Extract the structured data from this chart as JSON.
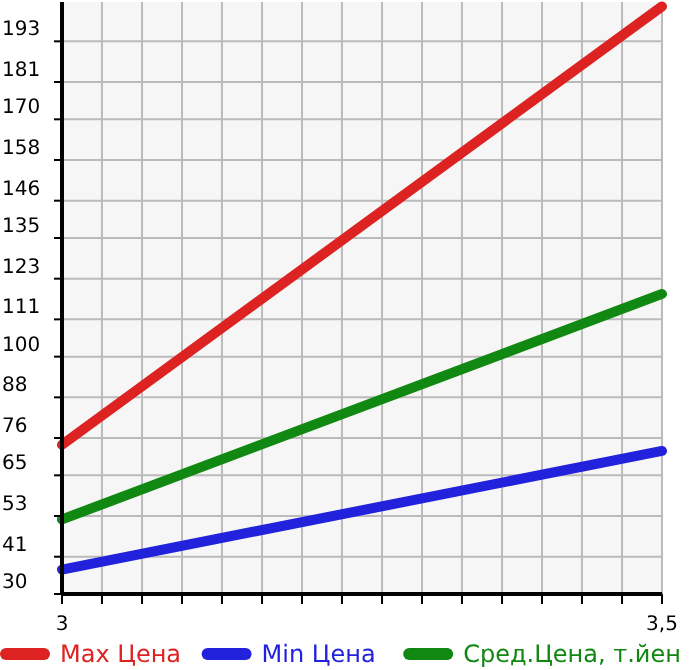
{
  "chart_data": {
    "type": "line",
    "x": [
      3,
      3.5
    ],
    "series": [
      {
        "name": "Max Цена",
        "color": "#dd2222",
        "values": [
          74,
          203.3
        ]
      },
      {
        "name": "Min Цена",
        "color": "#2222dd",
        "values": [
          37.2,
          72.2
        ]
      },
      {
        "name": "Сред.Цена, т.йен",
        "color": "#118811",
        "values": [
          52,
          118.5
        ]
      }
    ],
    "xlim": [
      3,
      3.5
    ],
    "xticks": [
      3,
      {
        "value": 3.0333,
        "label": null
      },
      {
        "value": 3.0667,
        "label": null
      },
      {
        "value": 3.1,
        "label": null
      },
      {
        "value": 3.1333,
        "label": null
      },
      {
        "value": 3.1667,
        "label": null
      },
      {
        "value": 3.2,
        "label": null
      },
      {
        "value": 3.2333,
        "label": null
      },
      {
        "value": 3.2667,
        "label": null
      },
      {
        "value": 3.3,
        "label": null
      },
      {
        "value": 3.3333,
        "label": null
      },
      {
        "value": 3.3667,
        "label": null
      },
      {
        "value": 3.4,
        "label": null
      },
      {
        "value": 3.4333,
        "label": null
      },
      {
        "value": 3.4667,
        "label": null
      },
      {
        "value": 3.5,
        "label": "3,5"
      }
    ],
    "ylim": [
      30,
      204.6
    ],
    "yticks": [
      30,
      41,
      53,
      65,
      76,
      88,
      100,
      111,
      123,
      135,
      146,
      158,
      170,
      181,
      193
    ],
    "grid": true,
    "legend": "bottom",
    "marker": "none",
    "line_style": "solid"
  }
}
